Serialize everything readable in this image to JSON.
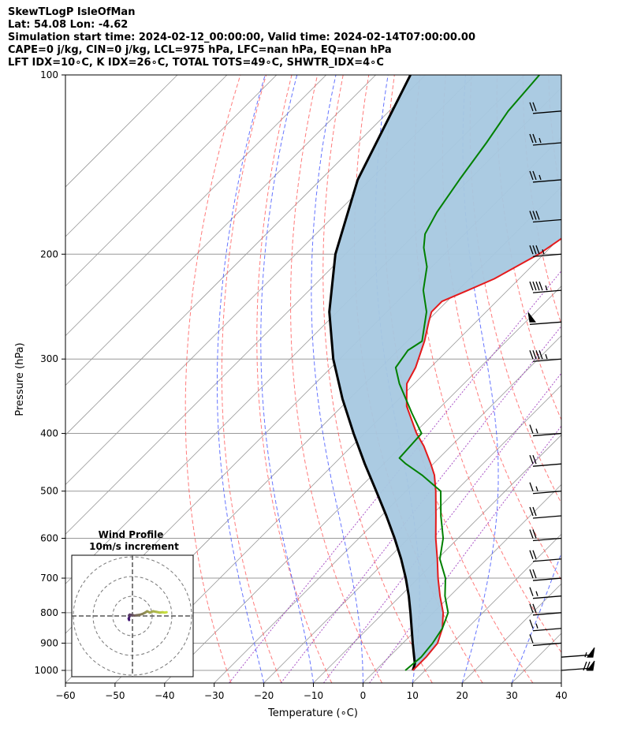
{
  "header": {
    "line1": "SkewTLogP IsleOfMan",
    "line2": "Lat: 54.08   Lon: -4.62",
    "line3": "Simulation start time: 2024-02-12_00:00:00, Valid time: 2024-02-14T07:00:00.00",
    "line4": "CAPE=0 j/kg, CIN=0 j/kg, LCL=975 hPa, LFC=nan hPa, EQ=nan hPa",
    "line5": "LFT IDX=10∘C, K IDX=26∘C, TOTAL TOTS=49∘C, SHWTR_IDX=4∘C"
  },
  "colors": {
    "temperature": "#e41a1c",
    "dewpoint": "#008000",
    "parcel": "#000000",
    "cape_fill": "#a6c8e0",
    "dry_adiabat": "#ff5a5a",
    "moist_adiabat": "#4a5cff",
    "mixing_ratio": "#a040c0",
    "isotherm": "#999999",
    "hodograph_low": "#3b0f70",
    "hodograph_high": "#c8e040"
  },
  "chart_data": {
    "type": "line",
    "xlabel": "Temperature (∘C)",
    "ylabel": "Pressure (hPa)",
    "x_ticks": [
      "−60",
      "−50",
      "−40",
      "−30",
      "−20",
      "−10",
      "0",
      "10",
      "20",
      "30",
      "40"
    ],
    "y_ticks": [
      "100",
      "200",
      "300",
      "400",
      "500",
      "600",
      "700",
      "800",
      "900",
      "1000"
    ],
    "xlim": [
      -60,
      40
    ],
    "ylim": [
      1050,
      100
    ],
    "y_scale": "log",
    "skew_degrees": 45,
    "series": [
      {
        "key": "temperature",
        "p": [
          1000,
          950,
          900,
          850,
          800,
          750,
          700,
          650,
          600,
          550,
          500,
          470,
          450,
          420,
          400,
          360,
          330,
          310,
          280,
          260,
          250,
          240,
          230,
          220,
          200,
          180,
          160,
          140,
          130,
          120,
          110,
          105,
          100
        ],
        "t": [
          7.5,
          7.5,
          7.0,
          5.0,
          2.0,
          -2.0,
          -6.0,
          -10.0,
          -14.5,
          -19.0,
          -24.0,
          -27.5,
          -30.5,
          -35.5,
          -39.5,
          -47.0,
          -51.5,
          -53.0,
          -56.5,
          -59.5,
          -61.0,
          -61.0,
          -58.0,
          -55.0,
          -51.0,
          -48.5,
          -48.5,
          -49.0,
          -48.5,
          -48.5,
          -49.0,
          -48.5,
          -49.0
        ]
      },
      {
        "key": "dewpoint",
        "p": [
          1000,
          950,
          900,
          850,
          800,
          750,
          700,
          650,
          600,
          550,
          500,
          470,
          450,
          440,
          400,
          370,
          330,
          310,
          290,
          280,
          250,
          230,
          210,
          195,
          185,
          170,
          150,
          130,
          115,
          100
        ],
        "t": [
          6.0,
          6.5,
          6.0,
          5.0,
          3.0,
          -1.0,
          -4.5,
          -9.5,
          -13.0,
          -18.0,
          -23.0,
          -30.0,
          -35.5,
          -38.0,
          -38.5,
          -44.5,
          -53.0,
          -57.0,
          -58.0,
          -57.0,
          -62.0,
          -67.0,
          -71.0,
          -75.5,
          -78.0,
          -80.0,
          -82.0,
          -84.0,
          -86.0,
          -87.0
        ]
      },
      {
        "key": "parcel",
        "p": [
          1000,
          975,
          950,
          900,
          850,
          800,
          750,
          700,
          650,
          600,
          550,
          500,
          450,
          400,
          350,
          300,
          250,
          200,
          150,
          100
        ],
        "t": [
          7.5,
          6.6,
          5.1,
          2.0,
          -1.2,
          -4.6,
          -8.3,
          -12.5,
          -17.3,
          -22.8,
          -29.0,
          -36.0,
          -43.8,
          -52.2,
          -61.4,
          -71.3,
          -81.6,
          -92.0,
          -102.5,
          -113.0
        ]
      }
    ],
    "wind_barbs": [
      {
        "p": 1000,
        "kt": 70
      },
      {
        "p": 950,
        "kt": 55
      },
      {
        "p": 900,
        "kt": 10
      },
      {
        "p": 850,
        "kt": 15
      },
      {
        "p": 800,
        "kt": 20
      },
      {
        "p": 750,
        "kt": 15
      },
      {
        "p": 700,
        "kt": 20
      },
      {
        "p": 650,
        "kt": 20
      },
      {
        "p": 600,
        "kt": 20
      },
      {
        "p": 550,
        "kt": 20
      },
      {
        "p": 500,
        "kt": 15
      },
      {
        "p": 450,
        "kt": 20
      },
      {
        "p": 400,
        "kt": 15
      },
      {
        "p": 300,
        "kt": 45
      },
      {
        "p": 260,
        "kt": 50
      },
      {
        "p": 230,
        "kt": 45
      },
      {
        "p": 200,
        "kt": 35
      },
      {
        "p": 175,
        "kt": 30
      },
      {
        "p": 150,
        "kt": 25
      },
      {
        "p": 130,
        "kt": 25
      },
      {
        "p": 115,
        "kt": 20
      }
    ],
    "hodograph": {
      "title": "Wind Profile",
      "subtitle": "10m/s increment",
      "u": [
        -2.5,
        -2.8,
        -2.3,
        -2.5,
        -2.0,
        -1.0,
        0.5,
        1.5,
        3.0,
        5.0,
        7.5,
        9.5,
        11.0,
        13.0,
        15.5,
        18.0,
        20.5,
        22.5,
        24.0,
        25.5
      ],
      "v": [
        -3.0,
        -2.0,
        -0.5,
        0.5,
        1.0,
        0.8,
        0.5,
        0.3,
        0.5,
        0.8,
        1.5,
        2.5,
        3.5,
        2.5,
        3.5,
        3.0,
        2.5,
        2.8,
        2.5,
        2.8
      ]
    }
  }
}
